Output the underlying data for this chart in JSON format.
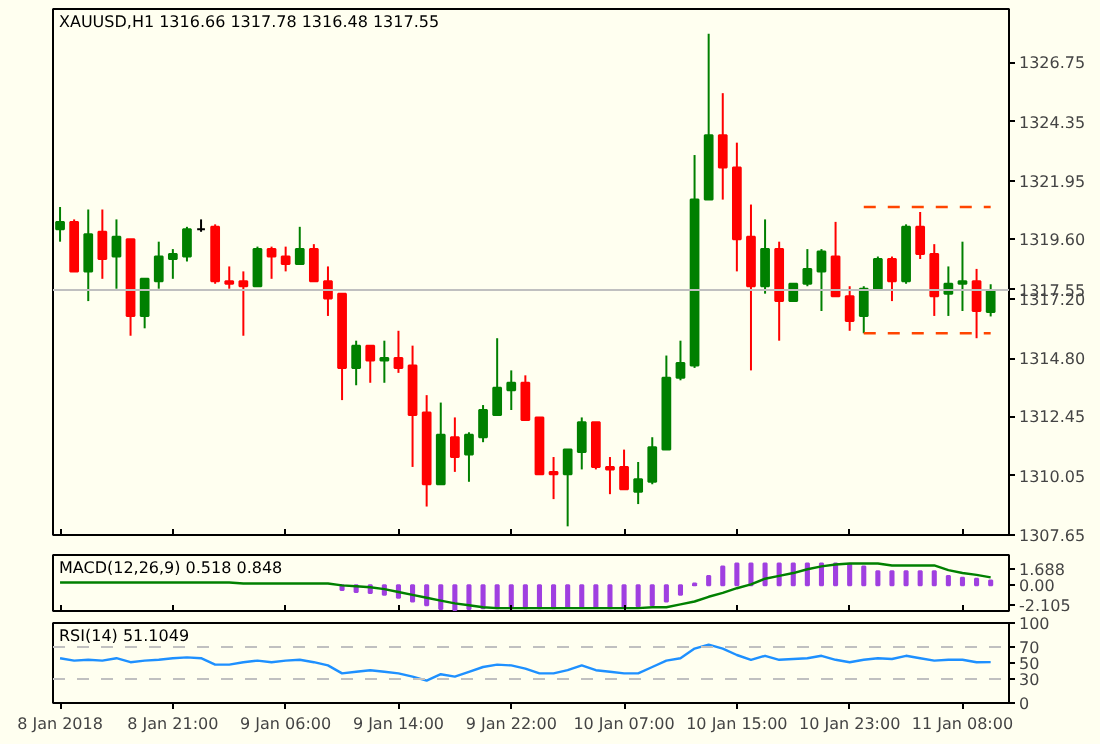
{
  "chart_data": [
    {
      "type": "candlestick",
      "title": "XAUUSD,H1 1316.66 1317.78 1316.48 1317.55",
      "ohlc": [
        [
          1320.0,
          1320.9,
          1319.5,
          1320.3
        ],
        [
          1320.3,
          1320.4,
          1318.3,
          1318.3
        ],
        [
          1318.3,
          1320.8,
          1317.1,
          1319.8
        ],
        [
          1319.9,
          1320.8,
          1318.0,
          1318.8
        ],
        [
          1318.9,
          1320.4,
          1317.6,
          1319.7
        ],
        [
          1319.6,
          1319.6,
          1315.7,
          1316.5
        ],
        [
          1316.5,
          1318.0,
          1316.0,
          1318.0
        ],
        [
          1317.9,
          1319.5,
          1317.6,
          1318.9
        ],
        [
          1318.8,
          1319.2,
          1318.0,
          1319.0
        ],
        [
          1318.9,
          1320.1,
          1318.7,
          1320.0
        ],
        [
          1320.0,
          1320.4,
          1319.9,
          1320.0
        ],
        [
          1320.1,
          1320.2,
          1317.8,
          1317.9
        ],
        [
          1317.9,
          1318.5,
          1317.6,
          1317.8
        ],
        [
          1317.9,
          1318.3,
          1315.7,
          1317.7
        ],
        [
          1317.7,
          1319.3,
          1317.7,
          1319.2
        ],
        [
          1319.2,
          1319.3,
          1318.0,
          1318.9
        ],
        [
          1318.9,
          1319.3,
          1318.3,
          1318.6
        ],
        [
          1318.6,
          1320.1,
          1318.6,
          1319.2
        ],
        [
          1319.2,
          1319.4,
          1317.9,
          1317.9
        ],
        [
          1317.9,
          1318.5,
          1316.5,
          1317.2
        ],
        [
          1317.4,
          1317.4,
          1313.1,
          1314.4
        ],
        [
          1314.4,
          1315.5,
          1313.7,
          1315.3
        ],
        [
          1315.3,
          1315.3,
          1313.8,
          1314.7
        ],
        [
          1314.7,
          1315.5,
          1313.8,
          1314.8
        ],
        [
          1314.8,
          1315.9,
          1314.2,
          1314.4
        ],
        [
          1314.5,
          1315.3,
          1310.4,
          1312.5
        ],
        [
          1312.6,
          1313.3,
          1308.8,
          1309.7
        ],
        [
          1309.7,
          1313.0,
          1309.7,
          1311.7
        ],
        [
          1311.6,
          1312.4,
          1310.2,
          1310.8
        ],
        [
          1310.9,
          1311.8,
          1309.8,
          1311.7
        ],
        [
          1311.6,
          1312.9,
          1311.4,
          1312.7
        ],
        [
          1312.5,
          1315.6,
          1312.5,
          1313.6
        ],
        [
          1313.5,
          1314.3,
          1312.7,
          1313.8
        ],
        [
          1313.8,
          1314.1,
          1312.3,
          1312.3
        ],
        [
          1312.4,
          1312.4,
          1310.1,
          1310.1
        ],
        [
          1310.2,
          1310.8,
          1309.1,
          1310.1
        ],
        [
          1310.1,
          1311.1,
          1308.0,
          1311.1
        ],
        [
          1311.0,
          1312.4,
          1310.3,
          1312.2
        ],
        [
          1312.2,
          1312.2,
          1310.3,
          1310.4
        ],
        [
          1310.4,
          1310.8,
          1309.3,
          1310.3
        ],
        [
          1310.4,
          1311.1,
          1309.5,
          1309.5
        ],
        [
          1309.4,
          1310.6,
          1308.9,
          1309.9
        ],
        [
          1309.8,
          1311.6,
          1309.7,
          1311.2
        ],
        [
          1311.1,
          1314.9,
          1311.1,
          1314.0
        ],
        [
          1314.0,
          1315.5,
          1313.9,
          1314.6
        ],
        [
          1314.5,
          1323.0,
          1314.4,
          1321.2
        ],
        [
          1321.2,
          1327.9,
          1321.2,
          1323.8
        ],
        [
          1323.8,
          1325.5,
          1321.2,
          1322.5
        ],
        [
          1322.5,
          1323.5,
          1318.3,
          1319.6
        ],
        [
          1319.7,
          1321.0,
          1314.3,
          1317.7
        ],
        [
          1317.7,
          1320.4,
          1317.4,
          1319.2
        ],
        [
          1319.2,
          1319.5,
          1315.5,
          1317.1
        ],
        [
          1317.1,
          1317.8,
          1317.1,
          1317.8
        ],
        [
          1317.8,
          1319.2,
          1317.7,
          1318.4
        ],
        [
          1318.3,
          1319.2,
          1316.7,
          1319.1
        ],
        [
          1318.9,
          1320.3,
          1317.3,
          1317.3
        ],
        [
          1317.3,
          1317.7,
          1315.9,
          1316.3
        ],
        [
          1316.5,
          1317.7,
          1315.8,
          1317.6
        ],
        [
          1317.6,
          1318.9,
          1317.6,
          1318.8
        ],
        [
          1318.8,
          1318.9,
          1317.1,
          1317.9
        ],
        [
          1317.9,
          1320.2,
          1317.8,
          1320.1
        ],
        [
          1320.1,
          1320.7,
          1318.8,
          1319.0
        ],
        [
          1319.0,
          1319.4,
          1316.5,
          1317.3
        ],
        [
          1317.4,
          1318.5,
          1316.5,
          1317.8
        ],
        [
          1317.8,
          1319.5,
          1316.7,
          1317.9
        ],
        [
          1317.9,
          1318.4,
          1315.6,
          1316.7
        ],
        [
          1316.66,
          1317.78,
          1316.48,
          1317.55
        ]
      ],
      "colors": [
        "#008000",
        "#ff0000",
        "#008000",
        "#ff0000",
        "#008000",
        "#ff0000",
        "#008000",
        "#008000",
        "#008000",
        "#008000",
        "#000000",
        "#ff0000",
        "#ff0000",
        "#ff0000",
        "#008000",
        "#ff0000",
        "#ff0000",
        "#008000",
        "#ff0000",
        "#ff0000",
        "#ff0000",
        "#008000",
        "#ff0000",
        "#008000",
        "#ff0000",
        "#ff0000",
        "#ff0000",
        "#008000",
        "#ff0000",
        "#008000",
        "#008000",
        "#008000",
        "#008000",
        "#ff0000",
        "#ff0000",
        "#ff0000",
        "#008000",
        "#008000",
        "#ff0000",
        "#ff0000",
        "#ff0000",
        "#008000",
        "#008000",
        "#008000",
        "#008000",
        "#008000",
        "#008000",
        "#ff0000",
        "#ff0000",
        "#ff0000",
        "#008000",
        "#ff0000",
        "#008000",
        "#008000",
        "#008000",
        "#ff0000",
        "#ff0000",
        "#008000",
        "#008000",
        "#ff0000",
        "#008000",
        "#ff0000",
        "#ff0000",
        "#008000",
        "#008000",
        "#ff0000",
        "#008000"
      ],
      "series": [
        {
          "type": "line",
          "color": "#ff4500",
          "line_style": "dashed",
          "values": [
            null,
            null,
            null,
            null,
            null,
            null,
            null,
            null,
            null,
            null,
            null,
            null,
            null,
            null,
            null,
            null,
            null,
            null,
            null,
            null,
            null,
            null,
            null,
            null,
            null,
            null,
            null,
            null,
            null,
            null,
            null,
            null,
            null,
            null,
            null,
            null,
            null,
            null,
            null,
            null,
            null,
            null,
            null,
            null,
            null,
            null,
            null,
            null,
            null,
            null,
            null,
            null,
            null,
            null,
            null,
            null,
            null,
            1320.9,
            1320.9,
            1320.9,
            1320.9,
            1320.9,
            1320.9,
            1320.9,
            1320.9,
            1320.9,
            1320.9
          ]
        },
        {
          "type": "line",
          "color": "#ff4500",
          "line_style": "dashed",
          "values": [
            null,
            null,
            null,
            null,
            null,
            null,
            null,
            null,
            null,
            null,
            null,
            null,
            null,
            null,
            null,
            null,
            null,
            null,
            null,
            null,
            null,
            null,
            null,
            null,
            null,
            null,
            null,
            null,
            null,
            null,
            null,
            null,
            null,
            null,
            null,
            null,
            null,
            null,
            null,
            null,
            null,
            null,
            null,
            null,
            null,
            null,
            null,
            null,
            null,
            null,
            null,
            null,
            null,
            null,
            null,
            null,
            null,
            1315.8,
            1315.8,
            1315.8,
            1315.8,
            1315.8,
            1315.8,
            1315.8,
            1315.8,
            1315.8,
            1315.8
          ]
        }
      ],
      "ref_lines": [
        {
          "axis": "y",
          "value": 1317.55,
          "label": "1317.55",
          "color": "#c0c0c0"
        }
      ],
      "ylim": [
        1307.65,
        1328.9
      ],
      "yticks": [
        1326.75,
        1324.35,
        1321.95,
        {
          "value": 1319.6,
          "label": "1319.60"
        },
        {
          "value": 1317.2,
          "label": "1317.20"
        },
        {
          "value": 1314.8,
          "label": "1314.80"
        },
        1312.45,
        1310.05,
        1307.65
      ],
      "tick_labels": "y"
    },
    {
      "type": "bar",
      "title": "MACD(12,26,9) 0.518 0.848",
      "series": [
        {
          "type": "bar",
          "color": "#a040e0",
          "values": [
            null,
            null,
            null,
            null,
            null,
            null,
            null,
            null,
            null,
            null,
            null,
            null,
            null,
            null,
            null,
            null,
            null,
            null,
            null,
            null,
            -0.5,
            -0.7,
            -0.8,
            -1.0,
            -1.3,
            -1.7,
            -2.1,
            -2.5,
            -2.6,
            -2.5,
            -2.4,
            -2.4,
            -2.4,
            -2.4,
            -2.4,
            -2.4,
            -2.3,
            -2.3,
            -2.3,
            -2.4,
            -2.3,
            -2.2,
            -2.1,
            -1.7,
            -1.0,
            0.2,
            1.0,
            2.0,
            2.3,
            2.3,
            2.3,
            2.3,
            2.3,
            2.3,
            2.3,
            2.3,
            2.2,
            2.0,
            1.5,
            1.5,
            1.5,
            1.5,
            1.5,
            1.0,
            0.8,
            0.7,
            0.518
          ]
        },
        {
          "type": "line",
          "color": "#008000",
          "values": [
            0.3,
            0.3,
            0.3,
            0.3,
            0.3,
            0.3,
            0.3,
            0.3,
            0.3,
            0.3,
            0.3,
            0.3,
            0.3,
            0.2,
            0.2,
            0.2,
            0.2,
            0.2,
            0.2,
            0.2,
            0.0,
            -0.1,
            -0.2,
            -0.4,
            -0.7,
            -1.0,
            -1.3,
            -1.6,
            -1.9,
            -2.1,
            -2.3,
            -2.4,
            -2.4,
            -2.4,
            -2.4,
            -2.4,
            -2.4,
            -2.4,
            -2.4,
            -2.4,
            -2.4,
            -2.4,
            -2.3,
            -2.3,
            -2.0,
            -1.7,
            -1.2,
            -0.8,
            -0.3,
            0.1,
            0.7,
            1.0,
            1.3,
            1.7,
            2.0,
            2.2,
            2.3,
            2.3,
            2.3,
            2.1,
            2.1,
            2.1,
            2.1,
            1.6,
            1.3,
            1.1,
            0.848
          ]
        }
      ],
      "ylim": [
        -2.7,
        3.2
      ],
      "yticks": [
        1.688,
        {
          "value": 0,
          "label": "0.00"
        },
        -2.105
      ],
      "tick_labels": "y"
    },
    {
      "type": "line",
      "title": "RSI(14) 51.1049",
      "categories": [
        "8 Jan 2018",
        null,
        null,
        null,
        null,
        null,
        null,
        null,
        "8 Jan 21:00",
        null,
        null,
        null,
        null,
        null,
        null,
        null,
        "9 Jan 06:00",
        null,
        null,
        null,
        null,
        null,
        null,
        null,
        "9 Jan 14:00",
        null,
        null,
        null,
        null,
        null,
        null,
        null,
        "9 Jan 22:00",
        null,
        null,
        null,
        null,
        null,
        null,
        null,
        "10 Jan 07:00",
        null,
        null,
        null,
        null,
        null,
        null,
        null,
        "10 Jan 15:00",
        null,
        null,
        null,
        null,
        null,
        null,
        null,
        "10 Jan 23:00",
        null,
        null,
        null,
        null,
        null,
        null,
        null,
        "11 Jan 08:00",
        null,
        null
      ],
      "series": [
        {
          "color": "#1e90ff",
          "values": [
            56,
            53,
            54,
            53,
            56,
            51,
            53,
            54,
            56,
            57,
            56,
            48,
            48,
            51,
            53,
            51,
            53,
            54,
            51,
            47,
            37,
            39,
            41,
            39,
            37,
            33,
            28,
            36,
            33,
            39,
            45,
            48,
            47,
            43,
            37,
            37,
            41,
            47,
            41,
            39,
            37,
            37,
            45,
            53,
            56,
            68,
            73,
            68,
            60,
            54,
            59,
            54,
            55,
            56,
            59,
            54,
            51,
            54,
            56,
            55,
            59,
            56,
            53,
            54,
            54,
            51,
            51.1
          ]
        }
      ],
      "ref_lines": [
        {
          "axis": "y",
          "value": 70,
          "color": "#c0c0c0",
          "line_style": "dashed"
        },
        {
          "axis": "y",
          "value": 30,
          "color": "#c0c0c0",
          "line_style": "dashed"
        }
      ],
      "ylim": [
        0,
        100
      ],
      "yticks": [
        100,
        70,
        50,
        30,
        0
      ]
    }
  ]
}
